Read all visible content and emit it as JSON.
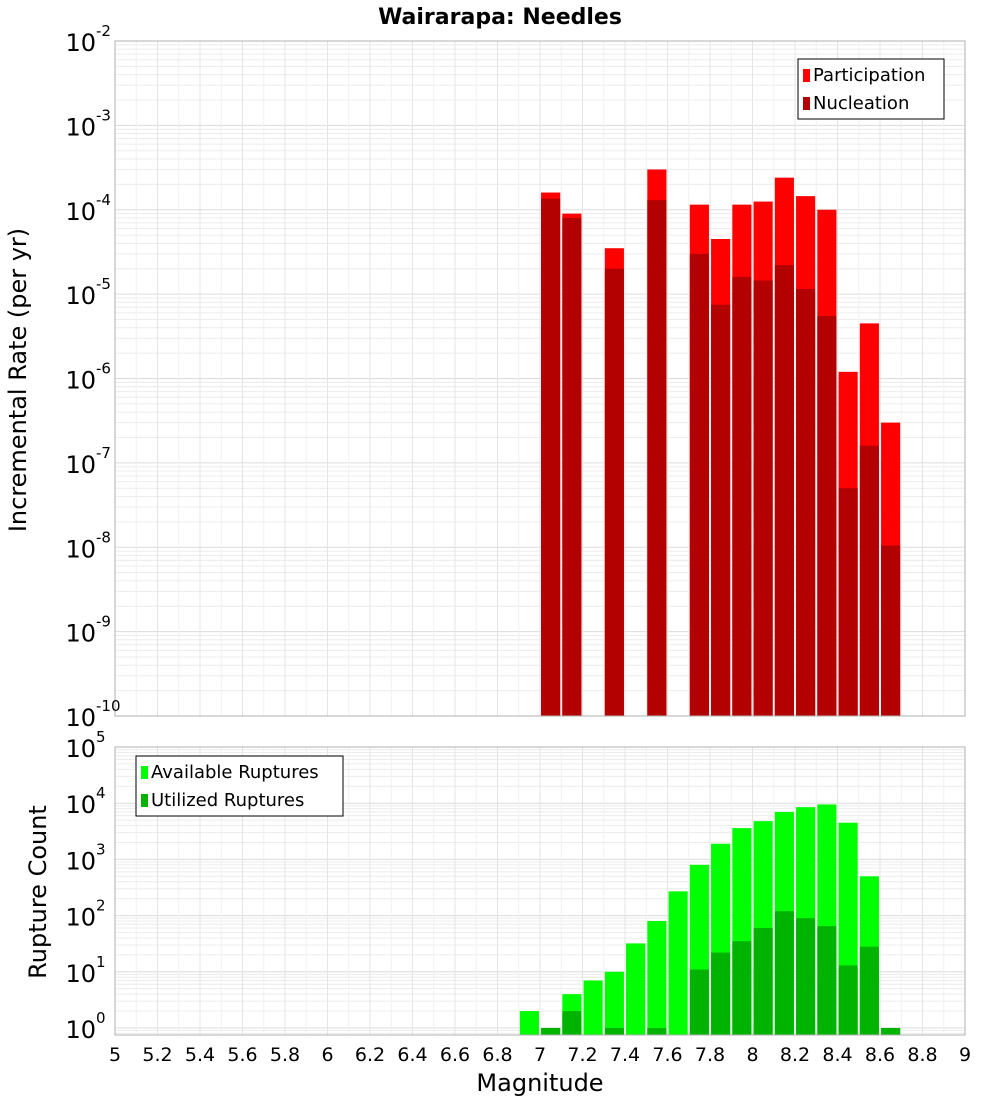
{
  "chart_data": [
    {
      "type": "bar",
      "title": "Wairarapa: Needles",
      "xlabel": "",
      "ylabel": "Incremental Rate (per yr)",
      "yscale": "log",
      "ylim": [
        1e-10,
        0.01
      ],
      "xlim": [
        5,
        9
      ],
      "grid": true,
      "legend_position": "top-right",
      "ytick_labels": [
        {
          "base": "10",
          "exp": "-10"
        },
        {
          "base": "10",
          "exp": "-9"
        },
        {
          "base": "10",
          "exp": "-8"
        },
        {
          "base": "10",
          "exp": "-7"
        },
        {
          "base": "10",
          "exp": "-6"
        },
        {
          "base": "10",
          "exp": "-5"
        },
        {
          "base": "10",
          "exp": "-4"
        },
        {
          "base": "10",
          "exp": "-3"
        },
        {
          "base": "10",
          "exp": "-2"
        }
      ],
      "series": [
        {
          "name": "Participation",
          "color": "#ff0000",
          "x": [
            7.05,
            7.15,
            7.35,
            7.55,
            7.75,
            7.85,
            7.95,
            8.05,
            8.15,
            8.25,
            8.35,
            8.45,
            8.55,
            8.65
          ],
          "values": [
            0.00016,
            9e-05,
            3.5e-05,
            0.0003,
            0.000115,
            4.5e-05,
            0.000115,
            0.000125,
            0.00024,
            0.000145,
            0.0001,
            1.2e-06,
            4.5e-06,
            3e-07
          ]
        },
        {
          "name": "Nucleation",
          "color": "#b30000",
          "x": [
            7.05,
            7.15,
            7.35,
            7.55,
            7.75,
            7.85,
            7.95,
            8.05,
            8.15,
            8.25,
            8.35,
            8.45,
            8.55,
            8.65
          ],
          "values": [
            0.000135,
            8e-05,
            2e-05,
            0.00013,
            3e-05,
            7.5e-06,
            1.6e-05,
            1.45e-05,
            2.2e-05,
            1.15e-05,
            5.5e-06,
            5e-08,
            1.6e-07,
            1.05e-08
          ]
        }
      ]
    },
    {
      "type": "bar",
      "title": "",
      "xlabel": "Magnitude",
      "ylabel": "Rupture Count",
      "yscale": "log",
      "ylim": [
        0.75,
        100000.0
      ],
      "xlim": [
        5,
        9
      ],
      "grid": true,
      "legend_position": "top-left",
      "xtick_labels": [
        "5",
        "5.2",
        "5.4",
        "5.6",
        "5.8",
        "6",
        "6.2",
        "6.4",
        "6.6",
        "6.8",
        "7",
        "7.2",
        "7.4",
        "7.6",
        "7.8",
        "8",
        "8.2",
        "8.4",
        "8.6",
        "8.8",
        "9"
      ],
      "ytick_labels": [
        {
          "base": "10",
          "exp": "0"
        },
        {
          "base": "10",
          "exp": "1"
        },
        {
          "base": "10",
          "exp": "2"
        },
        {
          "base": "10",
          "exp": "3"
        },
        {
          "base": "10",
          "exp": "4"
        },
        {
          "base": "10",
          "exp": "5"
        }
      ],
      "series": [
        {
          "name": "Available Ruptures",
          "color": "#00ff00",
          "x": [
            6.95,
            7.05,
            7.15,
            7.25,
            7.35,
            7.45,
            7.55,
            7.65,
            7.75,
            7.85,
            7.95,
            8.05,
            8.15,
            8.25,
            8.35,
            8.45,
            8.55,
            8.65
          ],
          "values": [
            2,
            1,
            4,
            7,
            10,
            32,
            80,
            270,
            800,
            1900,
            3600,
            4800,
            7000,
            8500,
            9500,
            4500,
            500,
            1
          ]
        },
        {
          "name": "Utilized Ruptures",
          "color": "#00b300",
          "x": [
            6.95,
            7.05,
            7.15,
            7.25,
            7.35,
            7.45,
            7.55,
            7.65,
            7.75,
            7.85,
            7.95,
            8.05,
            8.15,
            8.25,
            8.35,
            8.45,
            8.55,
            8.65
          ],
          "values": [
            0,
            1,
            2,
            0,
            1,
            0,
            1,
            0,
            11,
            22,
            35,
            60,
            120,
            90,
            65,
            13,
            28,
            1
          ]
        }
      ]
    }
  ]
}
